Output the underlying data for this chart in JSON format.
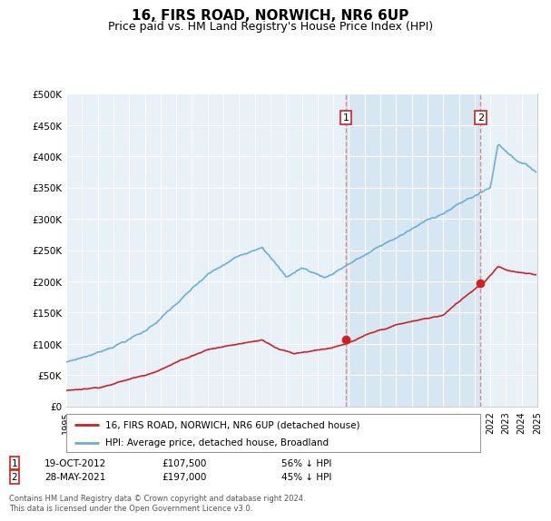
{
  "title": "16, FIRS ROAD, NORWICH, NR6 6UP",
  "subtitle": "Price paid vs. HM Land Registry's House Price Index (HPI)",
  "title_fontsize": 11,
  "subtitle_fontsize": 9,
  "background_color": "#ffffff",
  "plot_bg_color": "#e8f0f8",
  "grid_color": "#ffffff",
  "ylabel_ticks": [
    "£0",
    "£50K",
    "£100K",
    "£150K",
    "£200K",
    "£250K",
    "£300K",
    "£350K",
    "£400K",
    "£450K",
    "£500K"
  ],
  "ytick_values": [
    0,
    50000,
    100000,
    150000,
    200000,
    250000,
    300000,
    350000,
    400000,
    450000,
    500000
  ],
  "ylim": [
    0,
    500000
  ],
  "hpi_color": "#6baed6",
  "price_color": "#cc2222",
  "sale1_price": 107500,
  "sale2_price": 197000,
  "sale1_date": "19-OCT-2012",
  "sale2_date": "28-MAY-2021",
  "sale1_hpi_pct": "56% ↓ HPI",
  "sale2_hpi_pct": "45% ↓ HPI",
  "vline1_x": 2012.8,
  "vline2_x": 2021.37,
  "legend_label_red": "16, FIRS ROAD, NORWICH, NR6 6UP (detached house)",
  "legend_label_blue": "HPI: Average price, detached house, Broadland",
  "footer": "Contains HM Land Registry data © Crown copyright and database right 2024.\nThis data is licensed under the Open Government Licence v3.0.",
  "xmin": 1995,
  "xmax": 2025,
  "shade_color": "#c8ddf0",
  "vline_color": "#dd8888"
}
